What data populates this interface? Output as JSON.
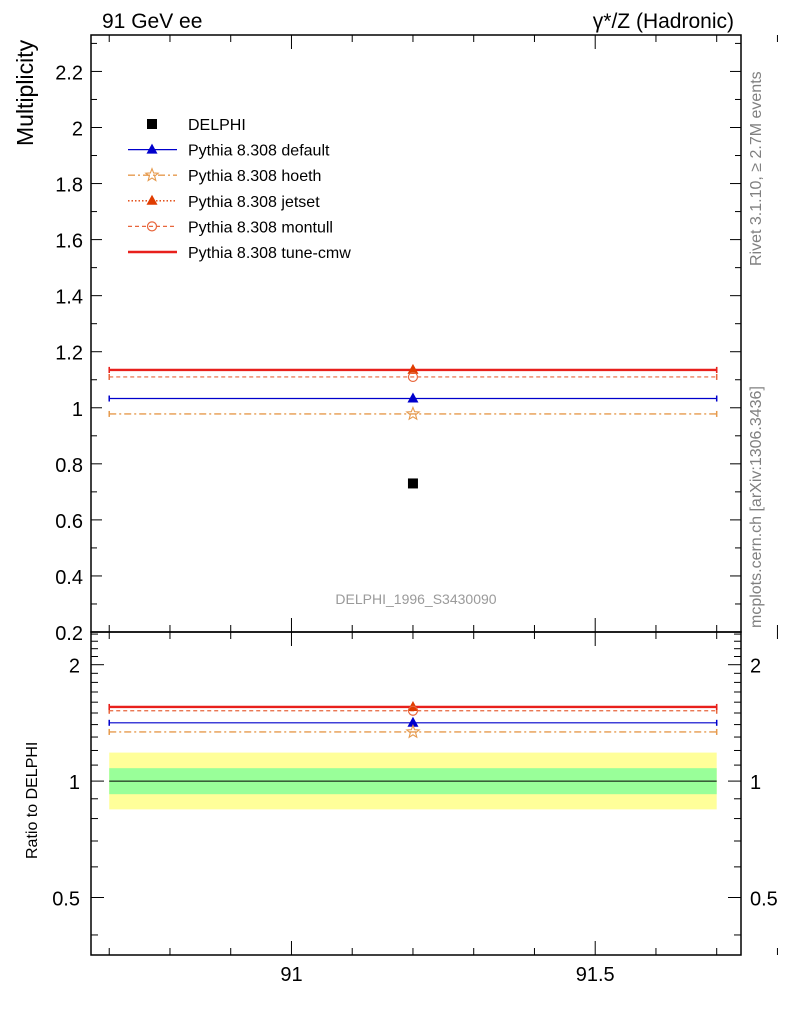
{
  "header": {
    "left": "91 GeV ee",
    "right": "γ*/Z (Hadronic)"
  },
  "side_text": {
    "rivet": "Rivet 3.1.10, ≥ 2.7M events",
    "mcplots": "mcplots.cern.ch [arXiv:1306.3436]"
  },
  "watermark": "DELPHI_1996_S3430090",
  "colors": {
    "delphi": "#000000",
    "default": "#0000cc",
    "hoeth": "#e69a4d",
    "jetset": "#e03c00",
    "montull": "#e8663c",
    "tune_cmw": "#e8201c",
    "band_outer": "#ffff99",
    "band_inner": "#99ff99"
  },
  "chart_data": [
    {
      "type": "line",
      "panel": "main",
      "ylabel": "Multiplicity",
      "xlim": [
        90.67,
        91.74
      ],
      "ylim": [
        0.2,
        2.33
      ],
      "yticks": [
        {
          "value": 0.2,
          "label": "0.2"
        },
        {
          "value": 0.4,
          "label": "0.4"
        },
        {
          "value": 0.6,
          "label": "0.6"
        },
        {
          "value": 0.8,
          "label": "0.8"
        },
        {
          "value": 1.0,
          "label": "1"
        },
        {
          "value": 1.2,
          "label": "1.2"
        },
        {
          "value": 1.4,
          "label": "1.4"
        },
        {
          "value": 1.6,
          "label": "1.6"
        },
        {
          "value": 1.8,
          "label": "1.8"
        },
        {
          "value": 2.0,
          "label": "2"
        },
        {
          "value": 2.2,
          "label": "2.2"
        }
      ],
      "series": [
        {
          "key": "delphi",
          "name": "DELPHI",
          "style": "data",
          "marker": "square",
          "x": 91.2,
          "y": 0.73
        },
        {
          "key": "default",
          "name": "Pythia 8.308 default",
          "style": "solid",
          "marker": "triangle",
          "x": 91.2,
          "y": 1.033,
          "x_range": [
            90.7,
            91.7
          ]
        },
        {
          "key": "hoeth",
          "name": "Pythia 8.308 hoeth",
          "style": "dashdot",
          "marker": "star",
          "x": 91.2,
          "y": 0.978,
          "x_range": [
            90.7,
            91.7
          ]
        },
        {
          "key": "jetset",
          "name": "Pythia 8.308 jetset",
          "style": "dotted",
          "marker": "triangle",
          "x": 91.2,
          "y": 1.135,
          "x_range": [
            90.7,
            91.7
          ]
        },
        {
          "key": "montull",
          "name": "Pythia 8.308 montull",
          "style": "dashed",
          "marker": "circle",
          "x": 91.2,
          "y": 1.11,
          "x_range": [
            90.7,
            91.7
          ]
        },
        {
          "key": "tune_cmw",
          "name": "Pythia 8.308 tune-cmw",
          "style": "thick",
          "marker": "none",
          "x": 91.2,
          "y": 1.135,
          "x_range": [
            90.7,
            91.7
          ]
        }
      ],
      "legend": "top-left"
    },
    {
      "type": "line",
      "panel": "ratio",
      "ylabel": "Ratio to DELPHI",
      "xlim": [
        90.67,
        91.74
      ],
      "ylim": [
        0.355,
        2.43
      ],
      "scale": "log",
      "xticks": [
        {
          "value": 91.0,
          "label": "91"
        },
        {
          "value": 91.5,
          "label": "91.5"
        }
      ],
      "yticks": [
        {
          "value": 0.5,
          "label": "0.5"
        },
        {
          "value": 1.0,
          "label": "1"
        },
        {
          "value": 2.0,
          "label": "2"
        }
      ],
      "band_outer": [
        0.845,
        1.185
      ],
      "band_inner": [
        0.925,
        1.08
      ],
      "series": [
        {
          "key": "default",
          "name": "Pythia 8.308 default",
          "x": 91.2,
          "y": 1.415
        },
        {
          "key": "hoeth",
          "name": "Pythia 8.308 hoeth",
          "x": 91.2,
          "y": 1.34
        },
        {
          "key": "jetset",
          "name": "Pythia 8.308 jetset",
          "x": 91.2,
          "y": 1.555
        },
        {
          "key": "montull",
          "name": "Pythia 8.308 montull",
          "x": 91.2,
          "y": 1.52
        },
        {
          "key": "tune_cmw",
          "name": "Pythia 8.308 tune-cmw",
          "x": 91.2,
          "y": 1.555
        }
      ]
    }
  ]
}
